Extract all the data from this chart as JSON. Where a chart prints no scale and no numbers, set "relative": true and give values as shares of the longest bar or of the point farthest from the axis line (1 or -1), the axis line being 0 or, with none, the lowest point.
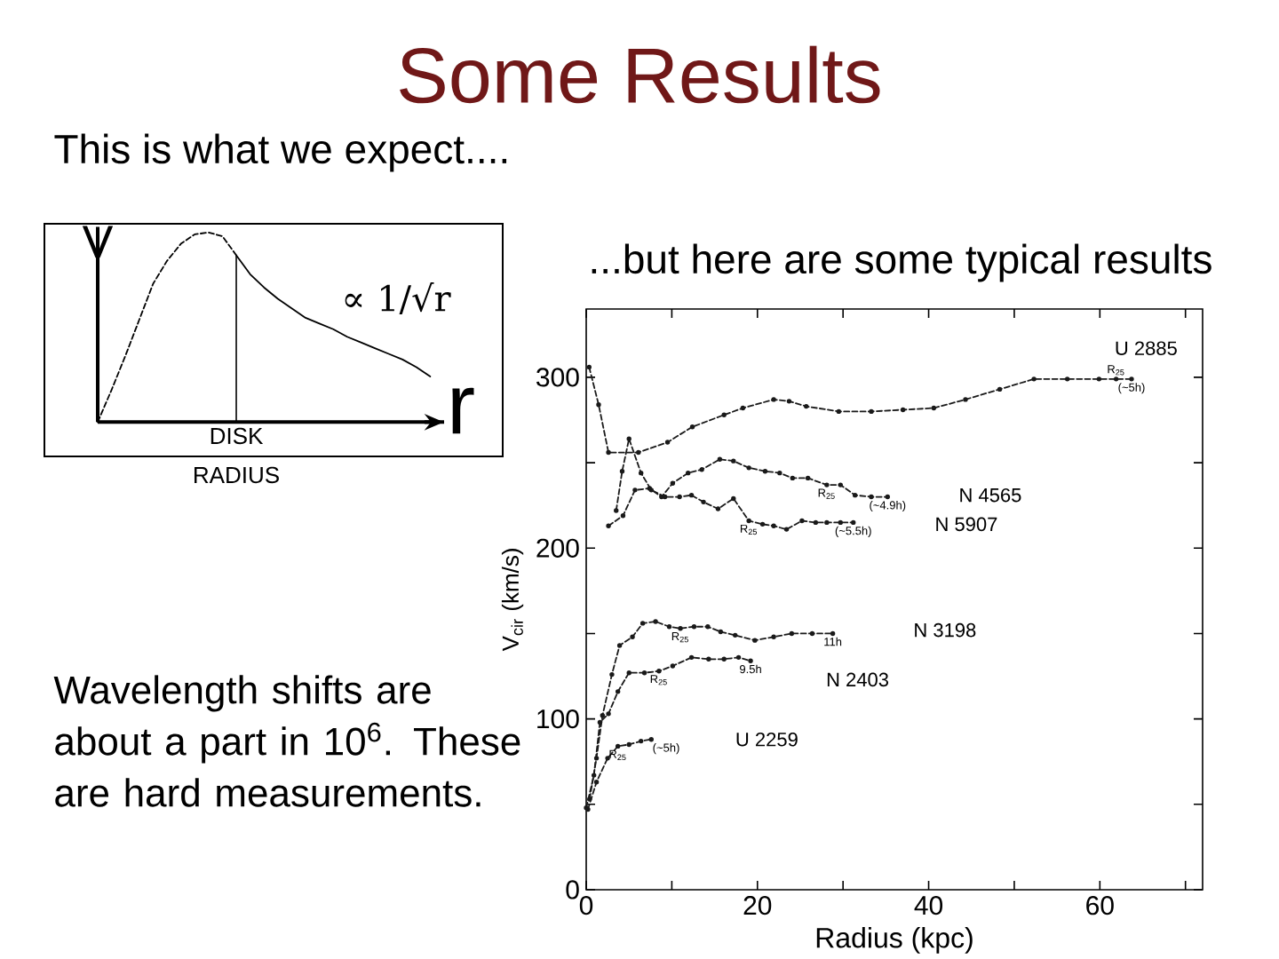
{
  "chart_data": [
    {
      "type": "line",
      "title": "Some Results",
      "subtitle": "This is what we expect....",
      "xlabel": "r",
      "ylabel": "V",
      "relative": true,
      "categories": [
        null,
        null,
        null,
        null,
        null,
        null,
        null,
        null,
        null,
        null,
        null,
        null,
        null,
        null,
        null,
        null,
        null,
        null,
        null,
        null,
        null,
        null,
        null,
        null,
        null
      ],
      "series": [
        {
          "color": "#000000",
          "line_style": "dashed",
          "values": [
            0,
            0.17,
            0.35,
            0.54,
            0.73,
            0.85,
            0.94,
            0.99,
            1.0,
            0.98,
            0.88,
            null,
            null,
            null,
            null,
            null,
            null,
            null,
            null,
            null,
            null,
            null,
            null,
            null,
            null
          ]
        },
        {
          "color": "#000000",
          "line_style": "solid",
          "values": [
            null,
            null,
            null,
            null,
            null,
            null,
            null,
            null,
            null,
            null,
            0.88,
            0.78,
            0.71,
            0.65,
            0.6,
            0.55,
            0.52,
            0.49,
            0.45,
            0.42,
            0.39,
            0.36,
            0.33,
            0.29,
            0.24
          ]
        }
      ],
      "annotations": [
        "DISK RADIUS",
        "∝ 1/√r",
        "Wavelength shifts are about a part in 10$^{6}$. These are hard measurements."
      ]
    },
    {
      "type": "line",
      "title": "...but here are some typical results",
      "xlabel": "Radius (kpc)",
      "ylabel": "V$_{cir}$ (km/s)",
      "xlim": [
        0,
        72
      ],
      "ylim": [
        0,
        340
      ],
      "xticks": [
        0,
        {
          "value": 10,
          "label": null
        },
        20,
        {
          "value": 30,
          "label": null
        },
        40,
        {
          "value": 50,
          "label": null
        },
        60,
        {
          "value": 70,
          "label": null
        }
      ],
      "yticks": [
        0,
        {
          "value": 50,
          "label": null
        },
        100,
        {
          "value": 150,
          "label": null
        },
        200,
        {
          "value": 250,
          "label": null
        },
        300
      ],
      "line_style": "dashed",
      "marker": "circle",
      "series": [
        {
          "name": "U 2885",
          "color": "#1a1a1a",
          "x": [
            0.34,
            1.45,
            2.6,
            6.1,
            9.5,
            12.4,
            16.1,
            18.3,
            21.9,
            23.7,
            25.7,
            29.5,
            33.3,
            37.0,
            40.6,
            44.3,
            48.3,
            52.3,
            56.2,
            59.9,
            61.9,
            63.7
          ],
          "values": [
            306,
            284,
            256,
            256,
            262,
            271,
            278,
            282,
            287,
            286,
            283,
            280,
            280,
            281,
            282,
            287,
            293,
            299,
            299,
            299,
            299,
            299
          ]
        },
        {
          "name": "N 4565",
          "color": "#1a1a1a",
          "x": [
            2.6,
            4.3,
            5.7,
            7.4,
            8.8,
            10.1,
            11.9,
            13.5,
            15.6,
            17.2,
            19.0,
            20.9,
            22.6,
            24.1,
            25.9,
            28.1,
            29.7,
            31.4,
            33.3,
            35.2
          ],
          "values": [
            213,
            219,
            234,
            235,
            230,
            238,
            244,
            246,
            252,
            251,
            247,
            245,
            244,
            241,
            241,
            237,
            237,
            231,
            230,
            230
          ]
        },
        {
          "name": "N 5907",
          "color": "#1a1a1a",
          "x": [
            3.5,
            4.2,
            5.0,
            6.4,
            7.6,
            9.2,
            10.9,
            12.3,
            13.7,
            15.4,
            17.2,
            19.0,
            20.6,
            21.9,
            23.4,
            25.2,
            26.8,
            28.1,
            29.7,
            31.2
          ],
          "values": [
            222,
            245,
            264,
            244,
            234,
            230,
            230,
            231,
            227,
            223,
            229,
            216,
            214,
            213,
            211,
            216,
            215,
            215,
            215,
            215
          ]
        },
        {
          "name": "N 3198",
          "color": "#1a1a1a",
          "x": [
            0.4,
            1.2,
            1.9,
            3.0,
            3.9,
            5.4,
            6.6,
            8.1,
            9.7,
            11.0,
            12.6,
            14.2,
            15.7,
            17.4,
            19.7,
            21.9,
            24.0,
            26.4,
            28.8
          ],
          "values": [
            53,
            77,
            102,
            126,
            143,
            148,
            156,
            157,
            154,
            153,
            154,
            154,
            151,
            149,
            146,
            148,
            150,
            150,
            150
          ]
        },
        {
          "name": "N 2403",
          "color": "#1a1a1a",
          "x": [
            0,
            0.9,
            1.6,
            2.6,
            3.7,
            5.0,
            6.8,
            8.5,
            10.1,
            12.3,
            14.3,
            16.1,
            17.8,
            19.2
          ],
          "values": [
            48,
            67,
            98,
            103,
            116,
            127,
            127,
            128,
            131,
            136,
            135,
            135,
            136,
            134
          ]
        },
        {
          "name": "U 2259",
          "color": "#1a1a1a",
          "x": [
            0.2,
            1.2,
            2.5,
            3.7,
            5.0,
            6.4,
            7.6
          ],
          "values": [
            47,
            63,
            77,
            84,
            85,
            87,
            88
          ]
        }
      ],
      "annotations": [
        {
          "text": "R$_{25}$",
          "x": 61.9,
          "y": 299
        },
        {
          "text": "(~5h)",
          "x": 63.7,
          "y": 299
        },
        {
          "text": "R$_{25}$",
          "x": 28.1,
          "y": 237
        },
        {
          "text": "(~4.9h)",
          "x": 35.2,
          "y": 230
        },
        {
          "text": "R$_{25}$",
          "x": 19.0,
          "y": 216
        },
        {
          "text": "(~5.5h)",
          "x": 31.2,
          "y": 215
        },
        {
          "text": "R$_{25}$",
          "x": 11.0,
          "y": 153
        },
        {
          "text": "11h",
          "x": 28.8,
          "y": 150
        },
        {
          "text": "R$_{25}$",
          "x": 8.5,
          "y": 128
        },
        {
          "text": "9.5h",
          "x": 19.2,
          "y": 134
        },
        {
          "text": "R$_{25}$",
          "x": 3.7,
          "y": 84
        },
        {
          "text": "(~5h)",
          "x": 7.6,
          "y": 88
        }
      ]
    }
  ]
}
